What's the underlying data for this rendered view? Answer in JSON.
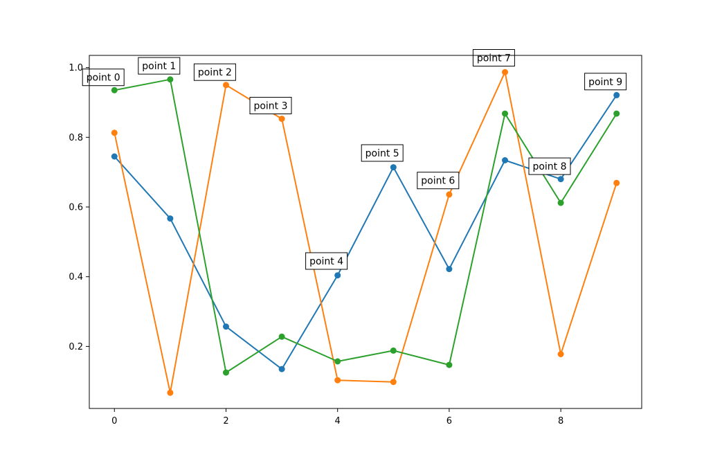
{
  "chart_data": {
    "type": "line",
    "title": "",
    "xlabel": "",
    "ylabel": "",
    "x": [
      0,
      1,
      2,
      3,
      4,
      5,
      6,
      7,
      8,
      9
    ],
    "xlim": [
      -0.45,
      9.45
    ],
    "ylim": [
      0.022,
      1.035
    ],
    "x_ticks": [
      0,
      2,
      4,
      6,
      8
    ],
    "y_ticks": [
      0.2,
      0.4,
      0.6,
      0.8,
      1.0
    ],
    "x_tick_labels": [
      "0",
      "2",
      "4",
      "6",
      "8"
    ],
    "y_tick_labels": [
      "0.2",
      "0.4",
      "0.6",
      "0.8",
      "1.0"
    ],
    "grid": false,
    "series": [
      {
        "color": "#1f77b4",
        "values": [
          0.745,
          0.567,
          0.257,
          0.135,
          0.404,
          0.714,
          0.422,
          0.734,
          0.68,
          0.921
        ]
      },
      {
        "color": "#ff7f0e",
        "values": [
          0.813,
          0.067,
          0.95,
          0.853,
          0.103,
          0.098,
          0.636,
          0.987,
          0.178,
          0.669
        ]
      },
      {
        "color": "#2ca02c",
        "values": [
          0.935,
          0.966,
          0.125,
          0.228,
          0.157,
          0.188,
          0.147,
          0.868,
          0.612,
          0.868
        ]
      }
    ],
    "annotations": [
      {
        "text": "point 0",
        "x": -0.2,
        "y": 0.972
      },
      {
        "text": "point 1",
        "x": 0.8,
        "y": 1.005
      },
      {
        "text": "point 2",
        "x": 1.8,
        "y": 0.987
      },
      {
        "text": "point 3",
        "x": 2.8,
        "y": 0.891
      },
      {
        "text": "point 4",
        "x": 3.8,
        "y": 0.445
      },
      {
        "text": "point 5",
        "x": 4.8,
        "y": 0.755
      },
      {
        "text": "point 6",
        "x": 5.8,
        "y": 0.676
      },
      {
        "text": "point 7",
        "x": 6.8,
        "y": 1.028
      },
      {
        "text": "point 8",
        "x": 7.8,
        "y": 0.717
      },
      {
        "text": "point 9",
        "x": 8.8,
        "y": 0.96
      }
    ]
  }
}
